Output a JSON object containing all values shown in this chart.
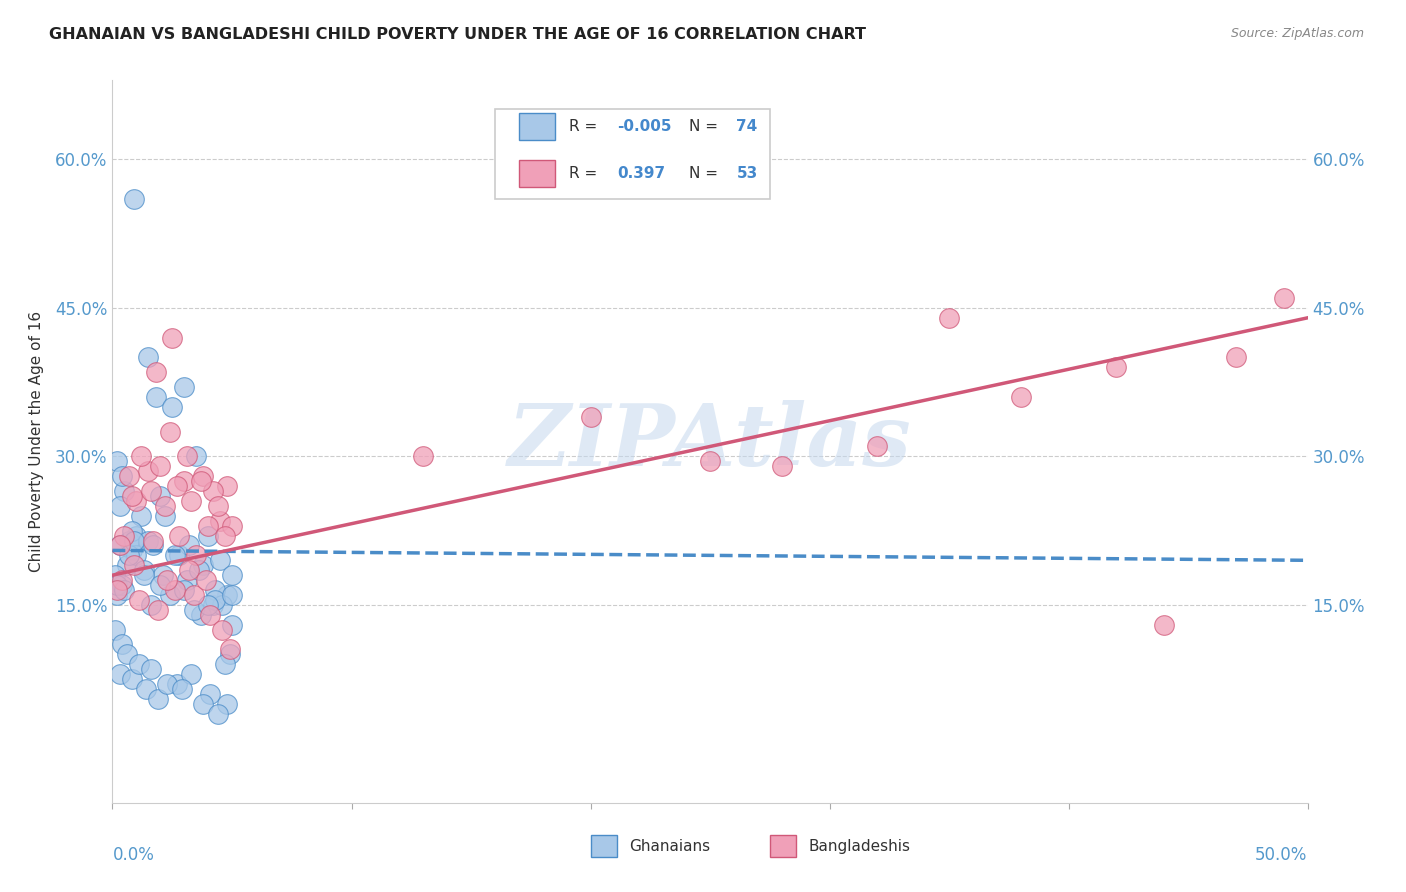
{
  "title": "GHANAIAN VS BANGLADESHI CHILD POVERTY UNDER THE AGE OF 16 CORRELATION CHART",
  "source": "Source: ZipAtlas.com",
  "ylabel": "Child Poverty Under the Age of 16",
  "yticks": [
    0.0,
    0.15,
    0.3,
    0.45,
    0.6
  ],
  "ytick_labels": [
    "",
    "15.0%",
    "30.0%",
    "45.0%",
    "60.0%"
  ],
  "xlim": [
    0.0,
    0.5
  ],
  "ylim": [
    -0.05,
    0.68
  ],
  "color_ghanaian": "#a8c8e8",
  "color_bangladeshi": "#f0a0b8",
  "color_line_ghanaian": "#4a8cc8",
  "color_line_bangladeshi": "#d05878",
  "watermark": "ZIPAtlas",
  "ghanaian_x": [
    0.008,
    0.015,
    0.005,
    0.01,
    0.018,
    0.003,
    0.007,
    0.002,
    0.004,
    0.012,
    0.02,
    0.025,
    0.03,
    0.035,
    0.04,
    0.003,
    0.006,
    0.008,
    0.01,
    0.015,
    0.022,
    0.028,
    0.032,
    0.038,
    0.001,
    0.002,
    0.004,
    0.007,
    0.009,
    0.013,
    0.017,
    0.021,
    0.026,
    0.031,
    0.036,
    0.042,
    0.045,
    0.048,
    0.05,
    0.037,
    0.043,
    0.046,
    0.05,
    0.049,
    0.047,
    0.003,
    0.008,
    0.014,
    0.019,
    0.027,
    0.033,
    0.041,
    0.048,
    0.001,
    0.004,
    0.006,
    0.011,
    0.016,
    0.023,
    0.029,
    0.038,
    0.044,
    0.009,
    0.016,
    0.024,
    0.034,
    0.043,
    0.002,
    0.005,
    0.013,
    0.02,
    0.03,
    0.04,
    0.05
  ],
  "ghanaian_y": [
    0.205,
    0.4,
    0.265,
    0.22,
    0.36,
    0.25,
    0.215,
    0.295,
    0.28,
    0.24,
    0.26,
    0.35,
    0.37,
    0.3,
    0.22,
    0.21,
    0.19,
    0.225,
    0.2,
    0.215,
    0.24,
    0.2,
    0.21,
    0.19,
    0.18,
    0.16,
    0.17,
    0.2,
    0.215,
    0.185,
    0.21,
    0.18,
    0.2,
    0.175,
    0.185,
    0.15,
    0.195,
    0.16,
    0.18,
    0.14,
    0.165,
    0.15,
    0.13,
    0.1,
    0.09,
    0.08,
    0.075,
    0.065,
    0.055,
    0.07,
    0.08,
    0.06,
    0.05,
    0.125,
    0.11,
    0.1,
    0.09,
    0.085,
    0.07,
    0.065,
    0.05,
    0.04,
    0.56,
    0.15,
    0.16,
    0.145,
    0.155,
    0.17,
    0.165,
    0.18,
    0.17,
    0.165,
    0.15,
    0.16
  ],
  "bangladeshi_x": [
    0.005,
    0.01,
    0.018,
    0.025,
    0.03,
    0.038,
    0.045,
    0.048,
    0.05,
    0.008,
    0.015,
    0.022,
    0.028,
    0.035,
    0.042,
    0.003,
    0.012,
    0.02,
    0.027,
    0.033,
    0.04,
    0.047,
    0.007,
    0.016,
    0.024,
    0.031,
    0.037,
    0.044,
    0.004,
    0.011,
    0.019,
    0.026,
    0.034,
    0.041,
    0.049,
    0.002,
    0.009,
    0.017,
    0.023,
    0.032,
    0.039,
    0.046,
    0.13,
    0.2,
    0.25,
    0.32,
    0.38,
    0.42,
    0.47,
    0.49,
    0.35,
    0.28,
    0.44
  ],
  "bangladeshi_y": [
    0.22,
    0.255,
    0.385,
    0.42,
    0.275,
    0.28,
    0.235,
    0.27,
    0.23,
    0.26,
    0.285,
    0.25,
    0.22,
    0.2,
    0.265,
    0.21,
    0.3,
    0.29,
    0.27,
    0.255,
    0.23,
    0.22,
    0.28,
    0.265,
    0.325,
    0.3,
    0.275,
    0.25,
    0.175,
    0.155,
    0.145,
    0.165,
    0.16,
    0.14,
    0.105,
    0.165,
    0.19,
    0.215,
    0.175,
    0.185,
    0.175,
    0.125,
    0.3,
    0.34,
    0.295,
    0.31,
    0.36,
    0.39,
    0.4,
    0.46,
    0.44,
    0.29,
    0.13
  ]
}
